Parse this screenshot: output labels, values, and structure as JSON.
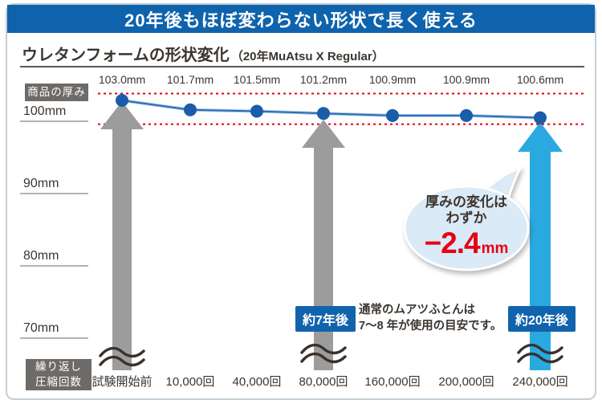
{
  "banner": {
    "title": "20年後もほぼ変わらない形状で長く使える"
  },
  "title": {
    "main": "ウレタンフォームの形状変化",
    "sub": "（20年MuAtsu X Regular）"
  },
  "axis": {
    "y_badge": "商品の厚み",
    "x_badge_line1": "繰り返し",
    "x_badge_line2": "圧縮回数"
  },
  "chart_data": {
    "type": "line",
    "title": "ウレタンフォームの形状変化（20年MuAtsu X Regular）",
    "categories": [
      "試験開始前",
      "10,000回",
      "40,000回",
      "80,000回",
      "160,000回",
      "200,000回",
      "240,000回"
    ],
    "values": [
      103.0,
      101.7,
      101.5,
      101.2,
      100.9,
      100.9,
      100.6
    ],
    "point_labels": [
      "103.0mm",
      "101.7mm",
      "101.5mm",
      "101.2mm",
      "100.9mm",
      "100.9mm",
      "100.6mm"
    ],
    "xlabel": "繰り返し圧縮回数",
    "ylabel": "商品の厚み",
    "y_ticks": [
      "100mm",
      "90mm",
      "80mm",
      "70mm"
    ],
    "y_tick_values_mm": [
      100,
      90,
      80,
      70
    ],
    "ylim": [
      70,
      104
    ],
    "axis_break": true,
    "reference_lines_mm": [
      103.0,
      100.6
    ],
    "grid": "y tick underlines only",
    "legend": "none"
  },
  "annotations": {
    "seven_year_badge": "約7年後",
    "twenty_year_badge": "約20年後",
    "note_line1": "通常のムアツふとんは",
    "note_line2": "7〜8 年が使用の目安です。",
    "bubble": {
      "line1": "厚みの変化は",
      "line2": "わずか",
      "value": "−2.4",
      "unit": "mm"
    }
  },
  "colors": {
    "banner_bg": "#0f63ac",
    "badge_blue": "#1263ad",
    "badge_gray": "#6e6a67",
    "gray_arrow": "#9c9c9c",
    "cyan_arrow": "#29a9e0",
    "dot_blue": "#1b5cab",
    "line_blue": "#2a6cb5",
    "line_light_blue": "#a9cce9",
    "reference_red": "#e60012",
    "value_red": "#e60012",
    "text_dark": "#3b3530",
    "bubble_fill": "#daeaf6"
  }
}
